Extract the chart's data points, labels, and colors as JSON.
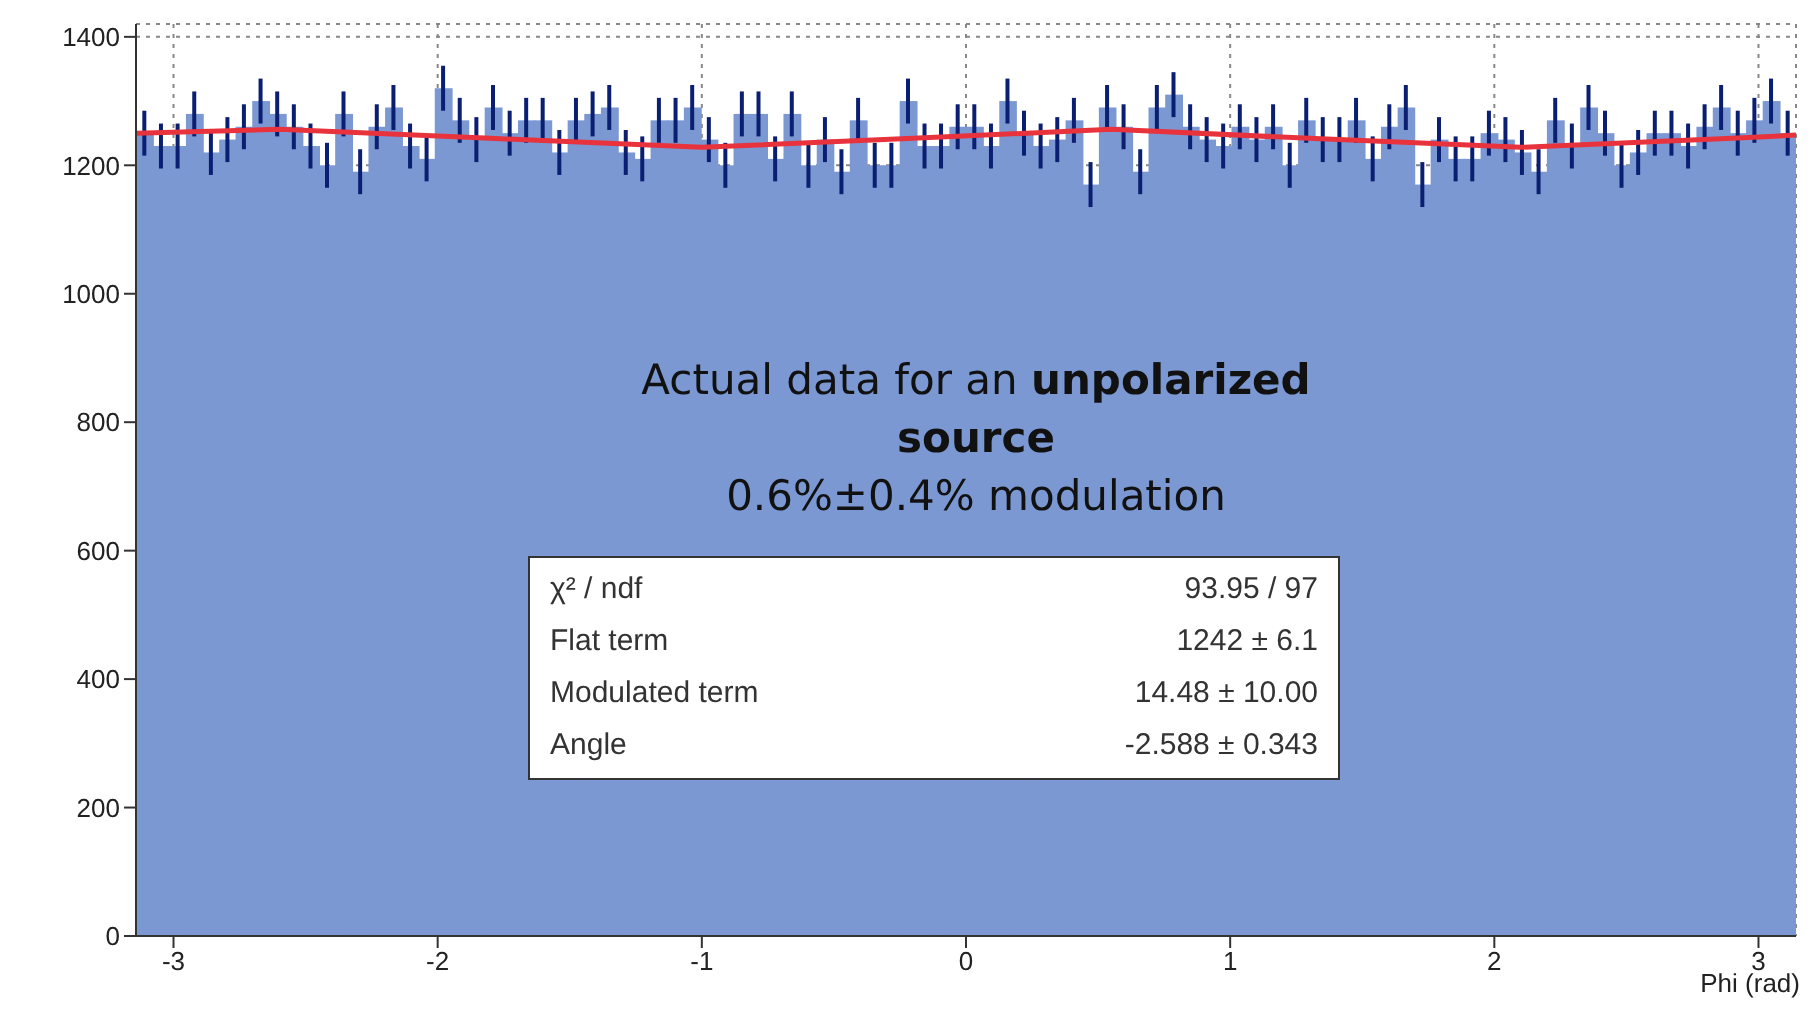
{
  "chart_data": {
    "type": "histogram",
    "xlabel": "Phi (rad)",
    "bins": [
      -3.142,
      -3.079,
      -3.016,
      -2.953,
      -2.89,
      -2.827,
      -2.765,
      -2.702,
      -2.639,
      -2.576,
      -2.513,
      -2.45,
      -2.388,
      -2.325,
      -2.262,
      -2.199,
      -2.136,
      -2.073,
      -2.011,
      -1.948,
      -1.885,
      -1.822,
      -1.759,
      -1.696,
      -1.634,
      -1.571,
      -1.508,
      -1.445,
      -1.382,
      -1.319,
      -1.257,
      -1.194,
      -1.131,
      -1.068,
      -1.005,
      -0.942,
      -0.88,
      -0.817,
      -0.754,
      -0.691,
      -0.628,
      -0.565,
      -0.503,
      -0.44,
      -0.377,
      -0.314,
      -0.251,
      -0.188,
      -0.126,
      -0.063,
      0,
      0.063,
      0.126,
      0.188,
      0.251,
      0.314,
      0.377,
      0.44,
      0.503,
      0.565,
      0.628,
      0.691,
      0.754,
      0.817,
      0.88,
      0.942,
      1.005,
      1.068,
      1.131,
      1.194,
      1.257,
      1.319,
      1.382,
      1.445,
      1.508,
      1.571,
      1.634,
      1.696,
      1.759,
      1.822,
      1.885,
      1.948,
      2.011,
      2.073,
      2.136,
      2.199,
      2.262,
      2.325,
      2.388,
      2.45,
      2.513,
      2.576,
      2.639,
      2.702,
      2.765,
      2.827,
      2.89,
      2.953,
      3.016,
      3.079,
      3.142
    ],
    "values": [
      1250,
      1230,
      1230,
      1280,
      1220,
      1240,
      1260,
      1300,
      1280,
      1260,
      1230,
      1200,
      1280,
      1190,
      1260,
      1290,
      1230,
      1210,
      1320,
      1270,
      1240,
      1290,
      1250,
      1270,
      1270,
      1220,
      1270,
      1280,
      1290,
      1220,
      1210,
      1270,
      1270,
      1290,
      1240,
      1200,
      1280,
      1280,
      1210,
      1280,
      1200,
      1240,
      1190,
      1270,
      1200,
      1200,
      1300,
      1230,
      1230,
      1260,
      1260,
      1230,
      1300,
      1250,
      1230,
      1240,
      1270,
      1170,
      1290,
      1260,
      1190,
      1290,
      1310,
      1260,
      1240,
      1230,
      1260,
      1240,
      1260,
      1200,
      1270,
      1240,
      1240,
      1270,
      1210,
      1260,
      1290,
      1170,
      1240,
      1210,
      1210,
      1250,
      1240,
      1220,
      1190,
      1270,
      1230,
      1290,
      1250,
      1200,
      1220,
      1250,
      1250,
      1230,
      1260,
      1290,
      1250,
      1270,
      1300,
      1250
    ],
    "errors": [
      35,
      35,
      35,
      35,
      35,
      35,
      35,
      35,
      35,
      35,
      35,
      35,
      35,
      35,
      35,
      35,
      35,
      35,
      35,
      35,
      35,
      35,
      35,
      35,
      35,
      35,
      35,
      35,
      35,
      35,
      35,
      35,
      35,
      35,
      35,
      35,
      35,
      35,
      35,
      35,
      35,
      35,
      35,
      35,
      35,
      35,
      35,
      35,
      35,
      35,
      35,
      35,
      35,
      35,
      35,
      35,
      35,
      35,
      35,
      35,
      35,
      35,
      35,
      35,
      35,
      35,
      35,
      35,
      35,
      35,
      35,
      35,
      35,
      35,
      35,
      35,
      35,
      35,
      35,
      35,
      35,
      35,
      35,
      35,
      35,
      35,
      35,
      35,
      35,
      35,
      35,
      35,
      35,
      35,
      35,
      35,
      35,
      35,
      35,
      35
    ],
    "color": "#7b98d2",
    "series": [
      {
        "type": "line",
        "color": "#e8323c",
        "x": [
          -3.142,
          -2.6,
          -1.8,
          -1.0,
          -0.2,
          0.55,
          1.3,
          2.1,
          2.9,
          3.142
        ],
        "values": [
          1250,
          1256,
          1242,
          1228,
          1242,
          1256,
          1242,
          1228,
          1242,
          1247
        ]
      }
    ],
    "xlim": [
      -3.142,
      3.142
    ],
    "xticks": [
      -3,
      -2,
      -1,
      0,
      1,
      2,
      3
    ],
    "ylim": [
      0,
      1420
    ],
    "yticks": [
      0,
      200,
      400,
      600,
      800,
      1000,
      1200,
      1400
    ],
    "grid": true,
    "legend": false,
    "marker": "none",
    "annotations": [
      "Actual data for an",
      "unpolarized source",
      "0.6%±0.4% modulation",
      "χ² / ndf",
      "93.95 / 97",
      "Flat term",
      "1242 ± 6.1",
      "Modulated term",
      "14.48 ± 10.00",
      "Angle",
      "-2.588 ± 0.343"
    ]
  }
}
